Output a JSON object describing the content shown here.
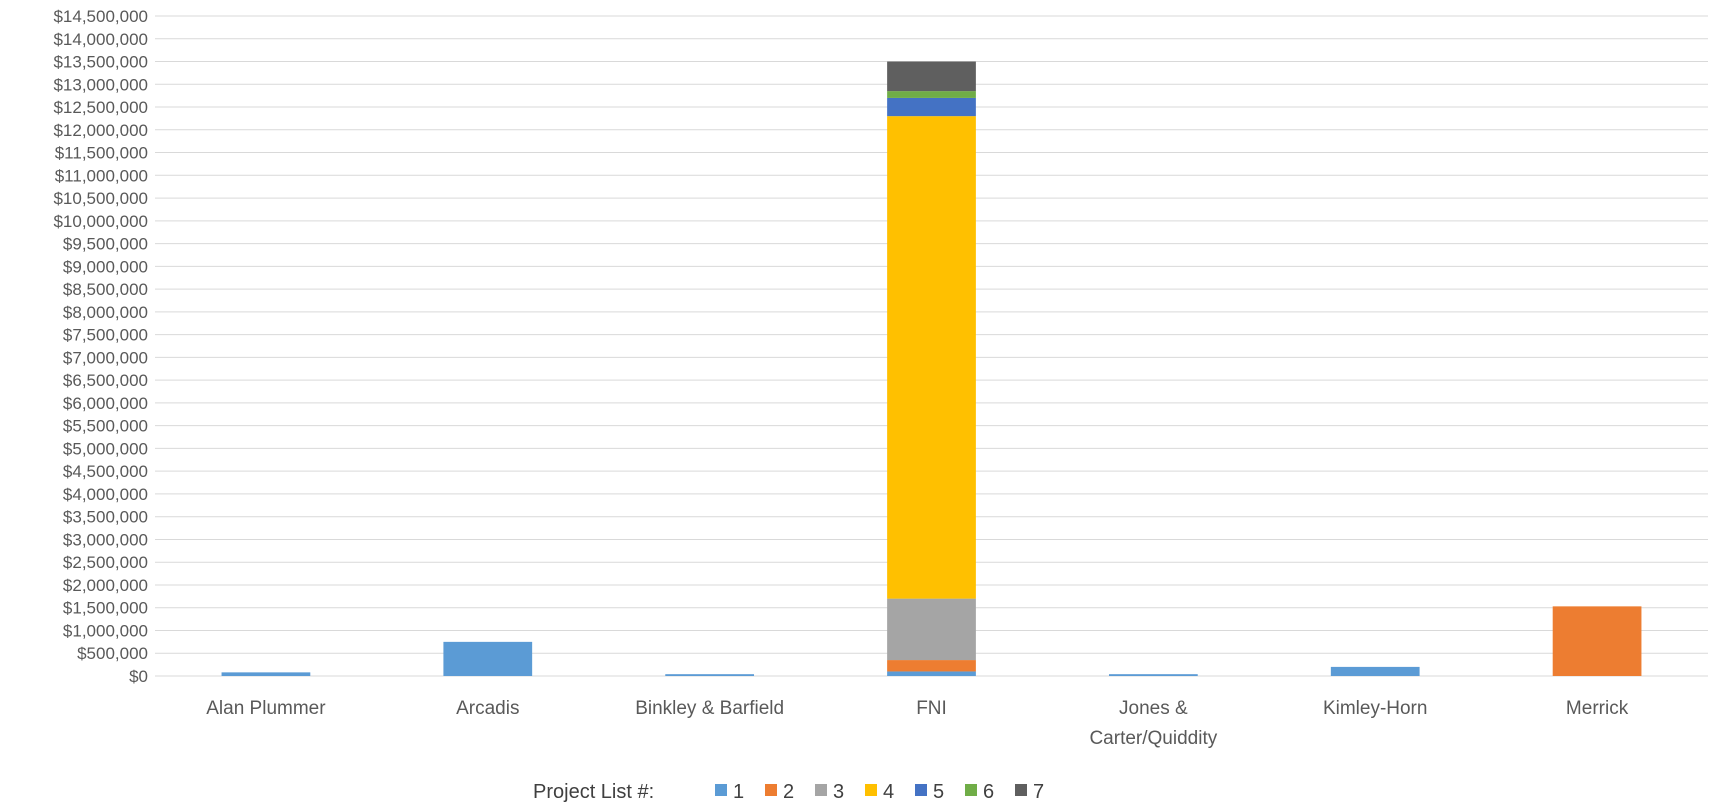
{
  "chart_data": {
    "type": "bar",
    "stacked": true,
    "categories": [
      "Alan Plummer",
      "Arcadis",
      "Binkley & Barfield",
      "FNI",
      "Jones & Carter/Quiddity",
      "Kimley-Horn",
      "Merrick"
    ],
    "category_lines": [
      [
        "Alan Plummer"
      ],
      [
        "Arcadis"
      ],
      [
        "Binkley & Barfield"
      ],
      [
        "FNI"
      ],
      [
        "Jones &",
        "Carter/Quiddity"
      ],
      [
        "Kimley-Horn"
      ],
      [
        "Merrick"
      ]
    ],
    "series": [
      {
        "name": "1",
        "color": "#5b9bd5",
        "values": [
          80000,
          750000,
          40000,
          100000,
          40000,
          200000,
          0
        ]
      },
      {
        "name": "2",
        "color": "#ed7d31",
        "values": [
          0,
          0,
          0,
          250000,
          0,
          0,
          1530000
        ]
      },
      {
        "name": "3",
        "color": "#a5a5a5",
        "values": [
          0,
          0,
          0,
          1350000,
          0,
          0,
          0
        ]
      },
      {
        "name": "4",
        "color": "#ffc000",
        "values": [
          0,
          0,
          0,
          10600000,
          0,
          0,
          0
        ]
      },
      {
        "name": "5",
        "color": "#4472c4",
        "values": [
          0,
          0,
          0,
          400000,
          0,
          0,
          0
        ]
      },
      {
        "name": "6",
        "color": "#70ad47",
        "values": [
          0,
          0,
          0,
          150000,
          0,
          0,
          0
        ]
      },
      {
        "name": "7",
        "color": "#5f5f5f",
        "values": [
          0,
          0,
          0,
          650000,
          0,
          0,
          0
        ]
      }
    ],
    "ylim": [
      0,
      14500000
    ],
    "ytick_step": 500000,
    "yticks": [
      "$0",
      "$500,000",
      "$1,000,000",
      "$1,500,000",
      "$2,000,000",
      "$2,500,000",
      "$3,000,000",
      "$3,500,000",
      "$4,000,000",
      "$4,500,000",
      "$5,000,000",
      "$5,500,000",
      "$6,000,000",
      "$6,500,000",
      "$7,000,000",
      "$7,500,000",
      "$8,000,000",
      "$8,500,000",
      "$9,000,000",
      "$9,500,000",
      "$10,000,000",
      "$10,500,000",
      "$11,000,000",
      "$11,500,000",
      "$12,000,000",
      "$12,500,000",
      "$13,000,000",
      "$13,500,000",
      "$14,000,000",
      "$14,500,000"
    ],
    "grid": true,
    "legend": {
      "title": "Project List #:",
      "position": "bottom-center"
    }
  }
}
